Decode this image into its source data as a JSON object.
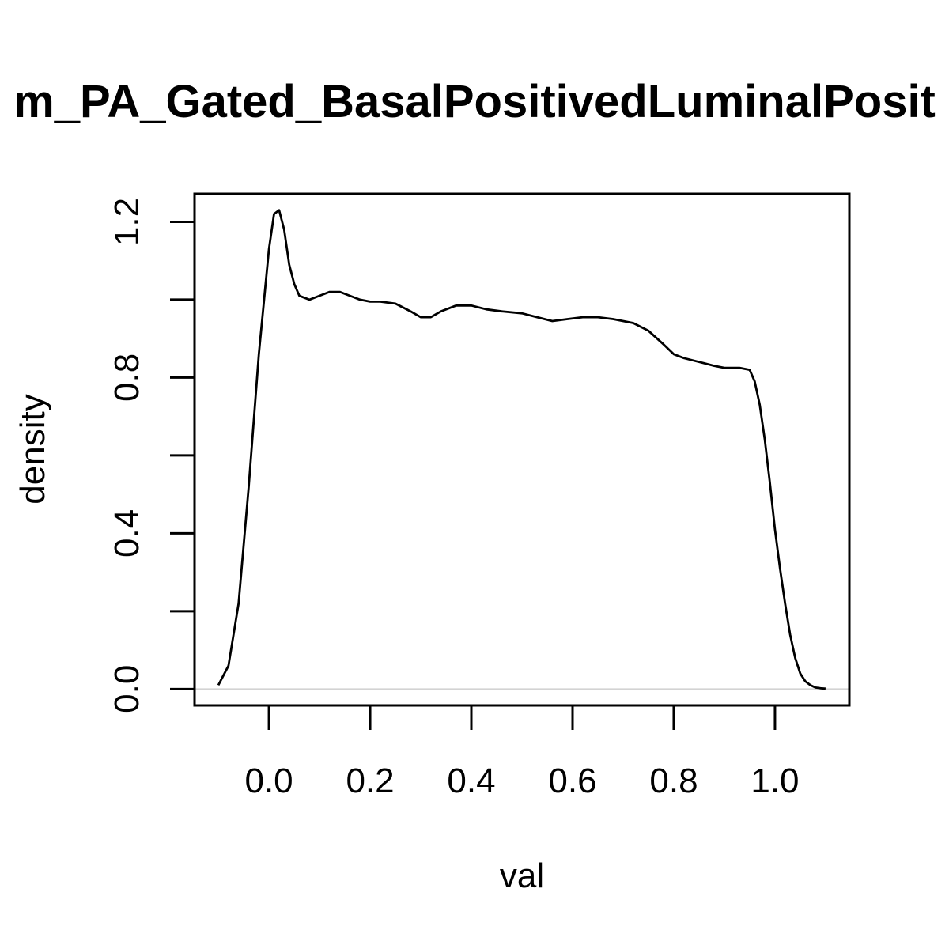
{
  "chart_data": {
    "type": "line",
    "title": "m_PA_Gated_BasalPositivedLuminalPosit",
    "xlabel": "val",
    "ylabel": "density",
    "xlim": [
      -0.147,
      1.147
    ],
    "ylim": [
      -0.042,
      1.272
    ],
    "xticks": [
      {
        "value": 0.0,
        "label": "0.0"
      },
      {
        "value": 0.2,
        "label": "0.2"
      },
      {
        "value": 0.4,
        "label": "0.4"
      },
      {
        "value": 0.6,
        "label": "0.6"
      },
      {
        "value": 0.8,
        "label": "0.8"
      },
      {
        "value": 1.0,
        "label": "1.0"
      }
    ],
    "yticks": [
      {
        "value": 0.0,
        "label": "0.0"
      },
      {
        "value": 0.2,
        "label": ""
      },
      {
        "value": 0.4,
        "label": "0.4"
      },
      {
        "value": 0.6,
        "label": ""
      },
      {
        "value": 0.8,
        "label": "0.8"
      },
      {
        "value": 1.0,
        "label": ""
      },
      {
        "value": 1.2,
        "label": "1.2"
      }
    ],
    "baseline": 0.0,
    "baseline_color": "#d3d3d3",
    "line_color": "#000000",
    "grid": false,
    "series": [
      {
        "x": [
          -0.1,
          -0.08,
          -0.06,
          -0.04,
          -0.02,
          0.0,
          0.01,
          0.02,
          0.03,
          0.04,
          0.05,
          0.06,
          0.08,
          0.1,
          0.12,
          0.14,
          0.16,
          0.18,
          0.2,
          0.22,
          0.25,
          0.28,
          0.3,
          0.32,
          0.34,
          0.37,
          0.4,
          0.43,
          0.46,
          0.5,
          0.53,
          0.56,
          0.59,
          0.62,
          0.65,
          0.68,
          0.72,
          0.75,
          0.78,
          0.8,
          0.82,
          0.85,
          0.88,
          0.9,
          0.93,
          0.95,
          0.96,
          0.97,
          0.98,
          0.99,
          1.0,
          1.01,
          1.02,
          1.03,
          1.04,
          1.05,
          1.06,
          1.07,
          1.08,
          1.09,
          1.1
        ],
        "y": [
          0.01,
          0.06,
          0.22,
          0.52,
          0.86,
          1.13,
          1.22,
          1.23,
          1.18,
          1.09,
          1.04,
          1.01,
          1.0,
          1.01,
          1.02,
          1.02,
          1.01,
          1.0,
          0.995,
          0.995,
          0.99,
          0.97,
          0.955,
          0.955,
          0.97,
          0.985,
          0.985,
          0.975,
          0.97,
          0.965,
          0.955,
          0.945,
          0.95,
          0.955,
          0.955,
          0.95,
          0.94,
          0.92,
          0.885,
          0.86,
          0.85,
          0.84,
          0.83,
          0.825,
          0.825,
          0.82,
          0.79,
          0.73,
          0.64,
          0.53,
          0.41,
          0.31,
          0.22,
          0.14,
          0.08,
          0.04,
          0.02,
          0.01,
          0.004,
          0.002,
          0.001
        ]
      }
    ]
  }
}
